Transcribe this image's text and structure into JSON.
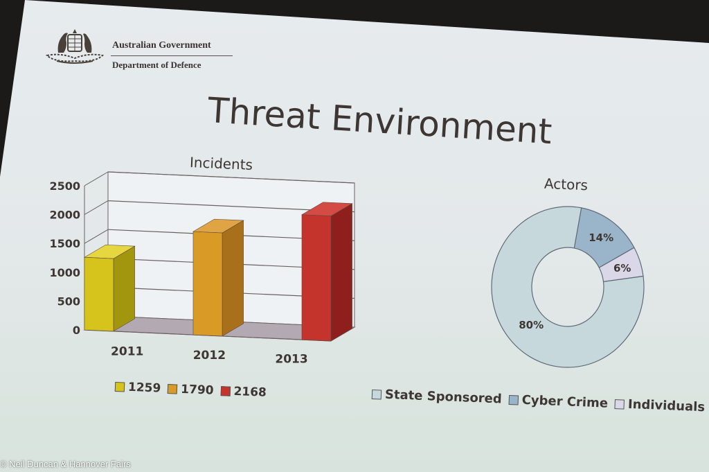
{
  "header": {
    "org_name": "Australian Government",
    "dept_name": "Department of Defence"
  },
  "slide_title": "Threat Environment",
  "chart_data": [
    {
      "type": "bar",
      "title": "Incidents",
      "categories": [
        "2011",
        "2012",
        "2013"
      ],
      "values": [
        1259,
        1790,
        2168
      ],
      "colors": [
        "#d6c41c",
        "#d99a26",
        "#c4332c"
      ],
      "side_colors": [
        "#a3960f",
        "#a8701a",
        "#8f1f1c"
      ],
      "top_colors": [
        "#e6d640",
        "#e0a444",
        "#d44a44"
      ],
      "legend_labels": [
        "1259",
        "1790",
        "2168"
      ],
      "ylim": [
        0,
        2500
      ],
      "yticks": [
        {
          "value": 0,
          "label": "0"
        },
        {
          "value": 500,
          "label": "500"
        },
        {
          "value": 1000,
          "label": "1000"
        },
        {
          "value": 1500,
          "label": "1500"
        },
        {
          "value": 2000,
          "label": "2000"
        },
        {
          "value": 2500,
          "label": "2500"
        }
      ],
      "grid": true,
      "style": "3d"
    },
    {
      "type": "pie",
      "title": "Actors",
      "donut": true,
      "categories": [
        "State Sponsored",
        "Cyber Crime",
        "Individuals & H"
      ],
      "values": [
        80,
        14,
        6
      ],
      "labels": [
        "80%",
        "14%",
        "6%"
      ],
      "colors": [
        "#c7d8dc",
        "#9ab5c9",
        "#dad7e8"
      ],
      "legend_placement": "bottom"
    }
  ],
  "credit": "© Neil Duncan & Hannover Fairs",
  "colors": {
    "slide_bg": "#e6ebee",
    "text": "#3d3633",
    "frame": "#1c1a19"
  }
}
